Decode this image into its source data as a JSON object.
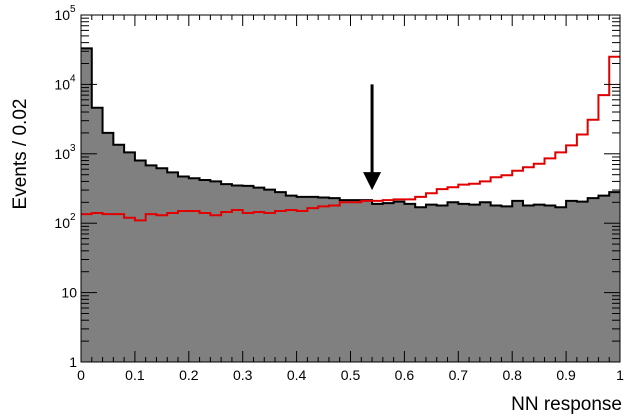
{
  "chart_data": {
    "type": "histogram",
    "xlabel": "NN response",
    "ylabel": "Events / 0.02",
    "xlim": [
      0,
      1
    ],
    "ylim": [
      1,
      100000
    ],
    "yscale": "log",
    "bin_width": 0.02,
    "x_ticks": [
      {
        "v": 0,
        "label": "0"
      },
      {
        "v": 0.1,
        "label": "0.1"
      },
      {
        "v": 0.2,
        "label": "0.2"
      },
      {
        "v": 0.3,
        "label": "0.3"
      },
      {
        "v": 0.4,
        "label": "0.4"
      },
      {
        "v": 0.5,
        "label": "0.5"
      },
      {
        "v": 0.6,
        "label": "0.6"
      },
      {
        "v": 0.7,
        "label": "0.7"
      },
      {
        "v": 0.8,
        "label": "0.8"
      },
      {
        "v": 0.9,
        "label": "0.9"
      },
      {
        "v": 1,
        "label": "1"
      }
    ],
    "y_ticks": [
      {
        "v": 1,
        "base": "1",
        "exp": ""
      },
      {
        "v": 10,
        "base": "10",
        "exp": ""
      },
      {
        "v": 100,
        "base": "10",
        "exp": "2"
      },
      {
        "v": 1000,
        "base": "10",
        "exp": "3"
      },
      {
        "v": 10000,
        "base": "10",
        "exp": "4"
      },
      {
        "v": 100000,
        "base": "10",
        "exp": "5"
      }
    ],
    "series": [
      {
        "style": "filled",
        "color": "#808080",
        "edge": "#000000",
        "values": [
          33000,
          4600,
          2000,
          1350,
          1050,
          800,
          680,
          620,
          540,
          470,
          445,
          420,
          400,
          365,
          350,
          345,
          325,
          305,
          280,
          250,
          240,
          240,
          235,
          230,
          215,
          215,
          215,
          190,
          195,
          205,
          190,
          170,
          185,
          180,
          200,
          190,
          185,
          200,
          180,
          175,
          210,
          180,
          185,
          180,
          170,
          210,
          205,
          230,
          250,
          280
        ]
      },
      {
        "style": "step",
        "color": "#e00000",
        "values": [
          135,
          140,
          135,
          135,
          120,
          110,
          135,
          130,
          140,
          150,
          150,
          140,
          130,
          145,
          155,
          140,
          145,
          140,
          150,
          155,
          150,
          165,
          175,
          180,
          200,
          200,
          210,
          210,
          215,
          220,
          220,
          240,
          270,
          310,
          330,
          360,
          370,
          400,
          460,
          490,
          570,
          640,
          720,
          860,
          1050,
          1320,
          1900,
          3100,
          7000,
          25000
        ]
      }
    ],
    "annotations": [
      {
        "type": "arrow",
        "x": 0.54,
        "y_from": 10000,
        "y_to": 300,
        "color": "#000000"
      }
    ],
    "grid": false,
    "legend": "none"
  }
}
